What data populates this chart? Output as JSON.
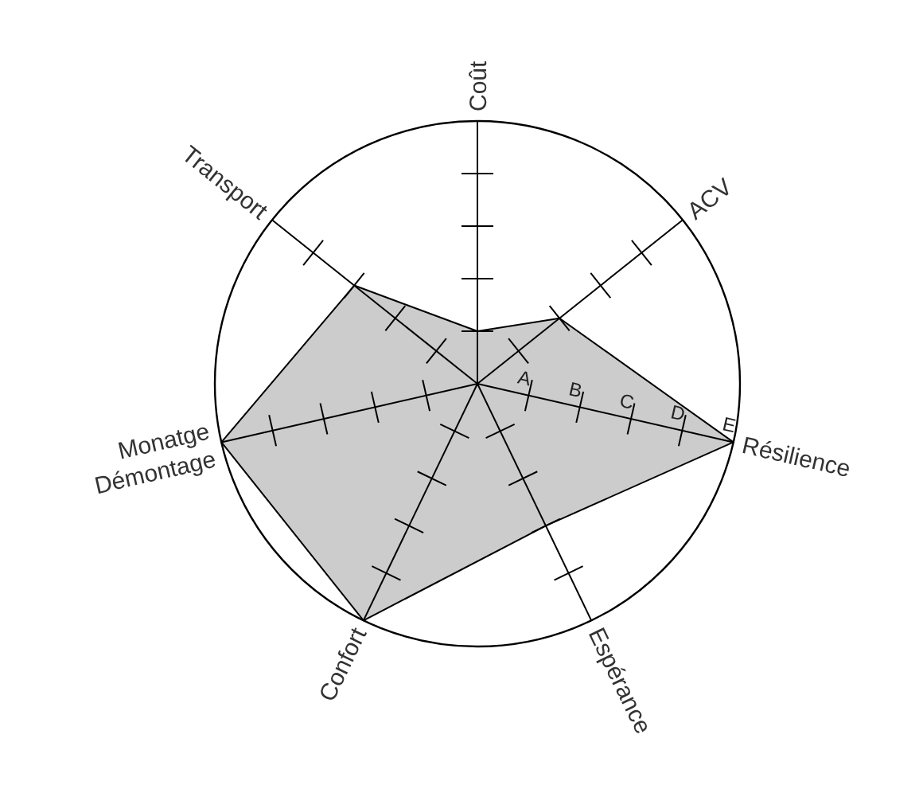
{
  "chart_data": {
    "type": "radar",
    "categories": [
      "Coût",
      "ACV",
      "Résilience",
      "Espérance",
      "Confort",
      "Monatge\nDémontage",
      "Transport"
    ],
    "series": [
      {
        "color": "#cccccc",
        "values": [
          1,
          2,
          5,
          3,
          5,
          5,
          3
        ]
      }
    ],
    "ylim": [
      0,
      5
    ],
    "yticks": [
      {
        "value": 1,
        "label": "A"
      },
      {
        "value": 2,
        "label": "B"
      },
      {
        "value": 3,
        "label": "C"
      },
      {
        "value": 4,
        "label": "D"
      },
      {
        "value": 5,
        "label": "E"
      }
    ]
  }
}
